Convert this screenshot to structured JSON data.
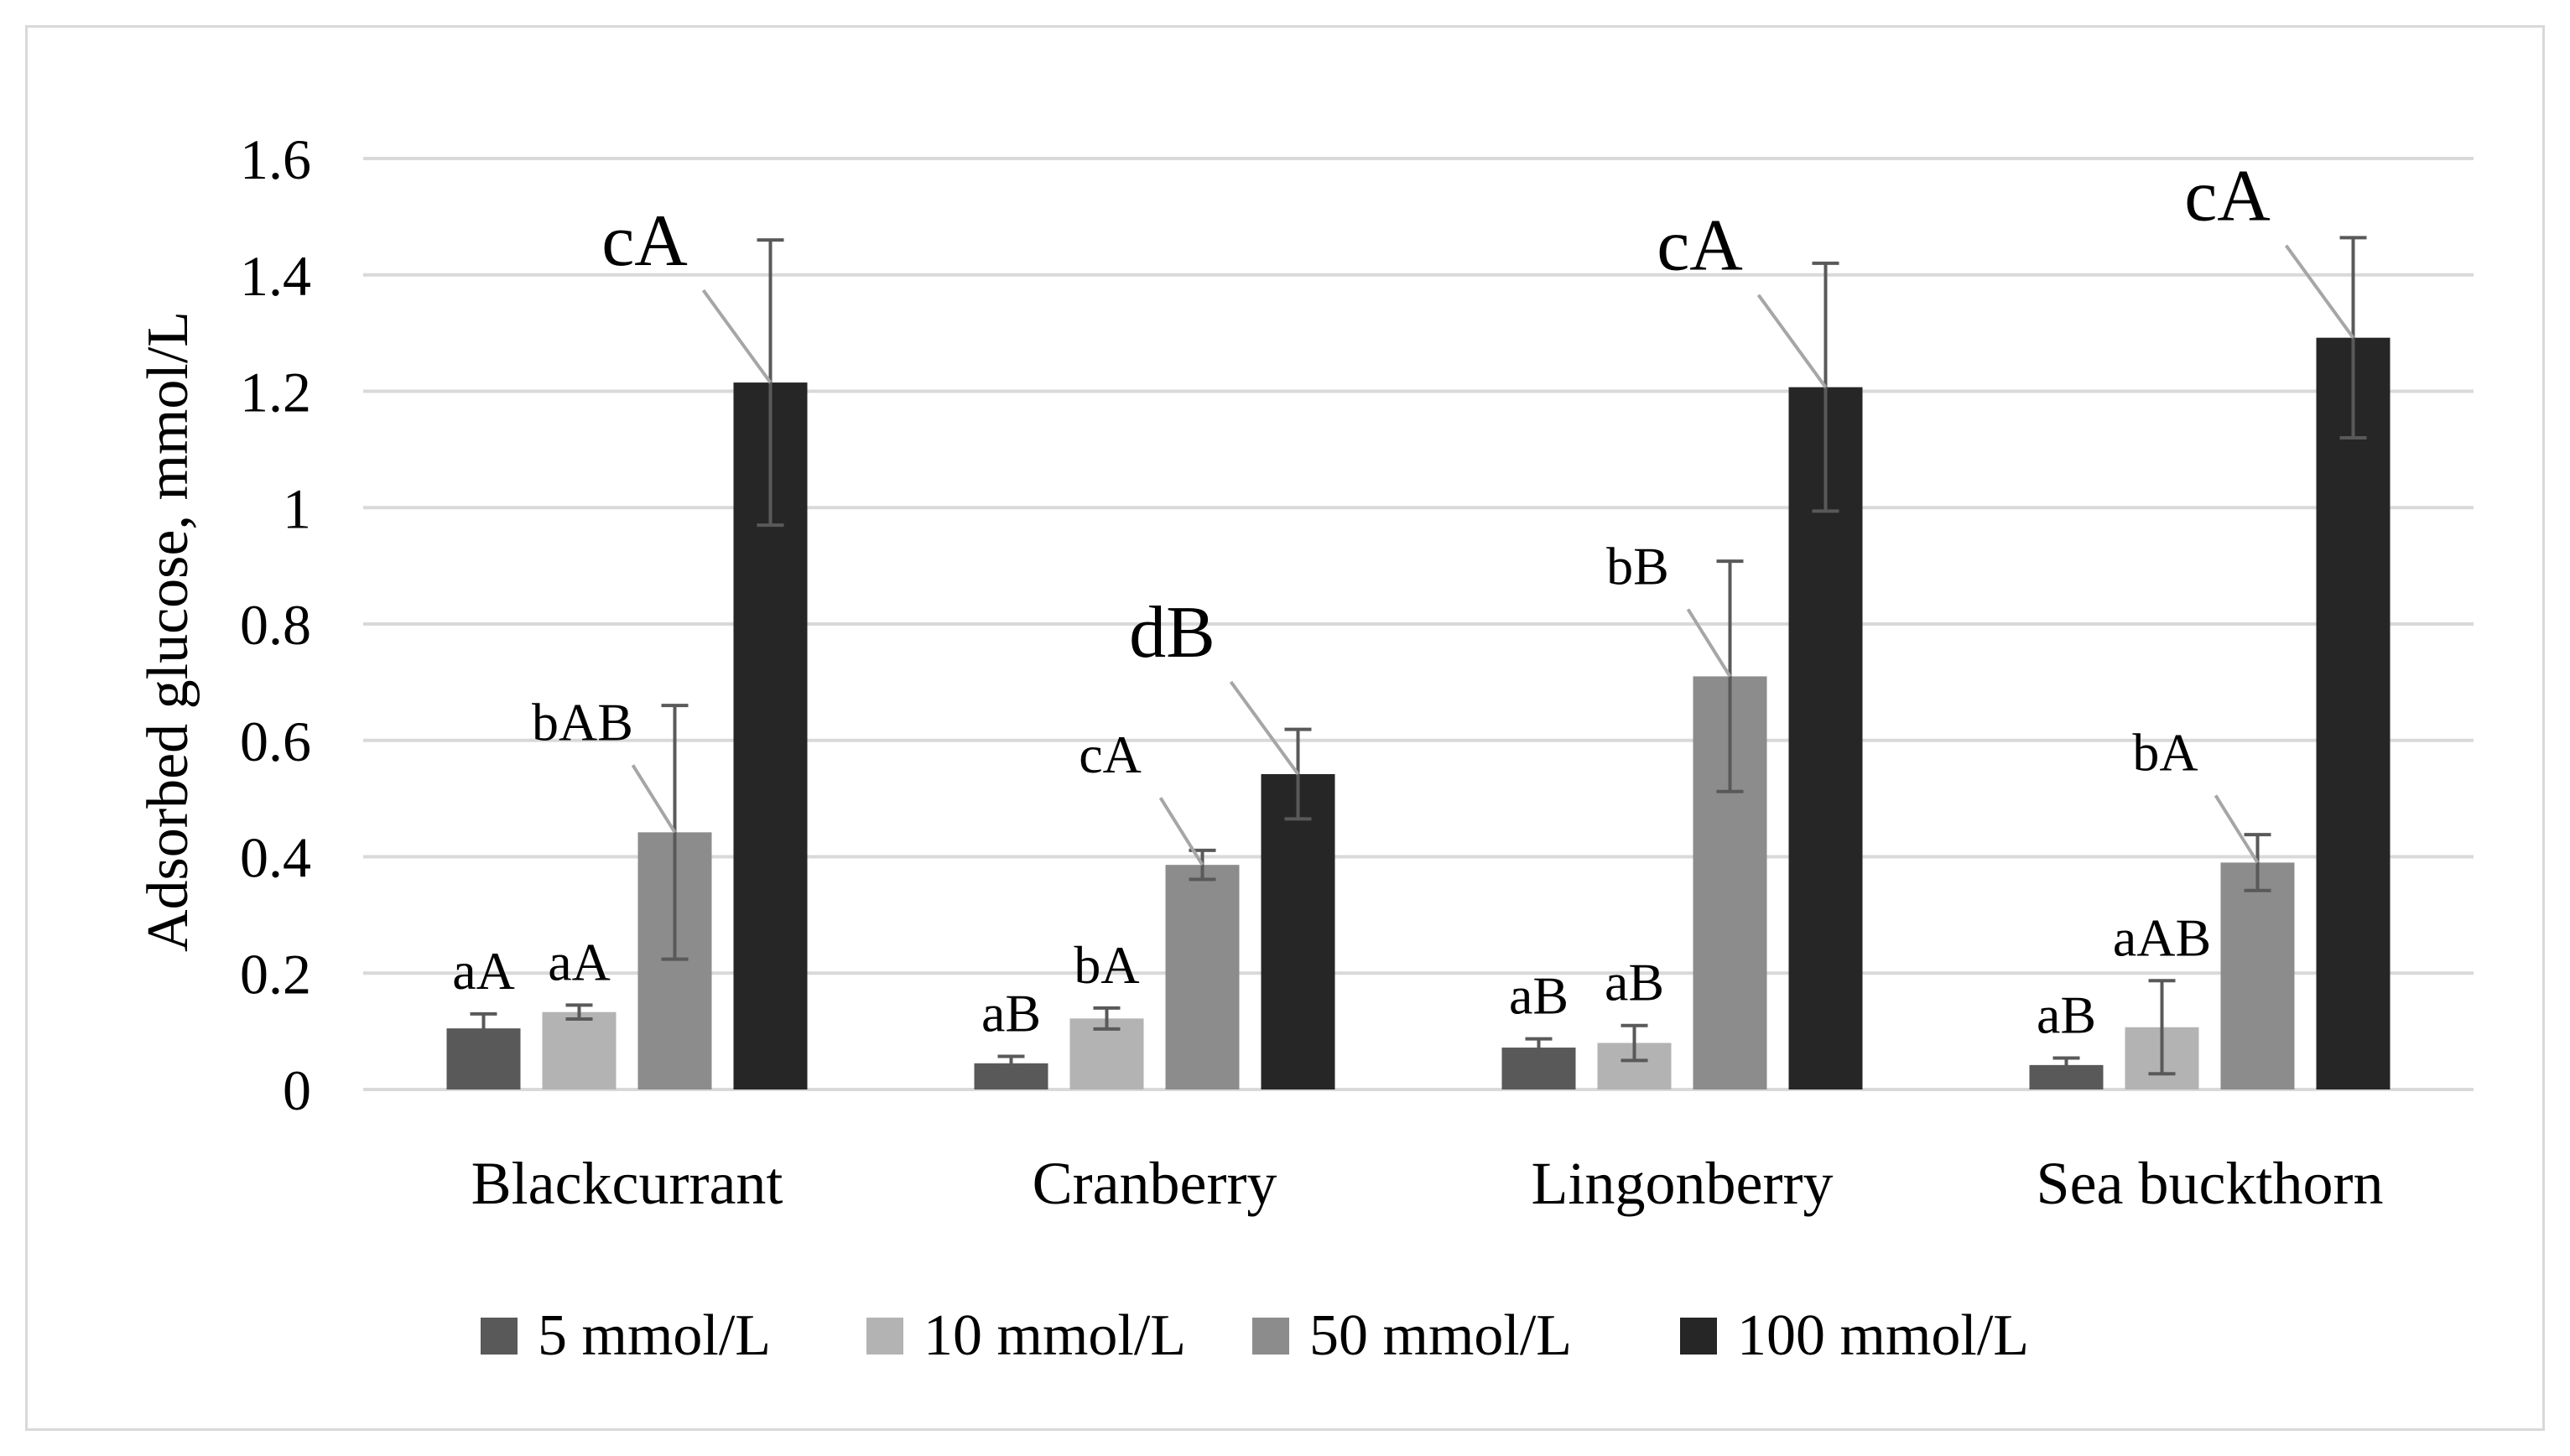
{
  "chart_data": {
    "type": "bar",
    "title": "",
    "xlabel": "",
    "ylabel": "Adsorbed glucose, mmol/L",
    "ylim": [
      0,
      1.6
    ],
    "yticks": [
      "0",
      "0.2",
      "0.4",
      "0.6",
      "0.8",
      "1",
      "1.2",
      "1.4",
      "1.6"
    ],
    "grid": true,
    "legend_position": "bottom",
    "categories": [
      "Blackcurrant",
      "Cranberry",
      "Lingonberry",
      "Sea buckthorn"
    ],
    "series": [
      {
        "name": "5 mmol/L",
        "color": "#595959",
        "values": [
          0.105,
          0.045,
          0.072,
          0.042
        ],
        "errors": [
          0.025,
          0.012,
          0.015,
          0.012
        ],
        "labels": [
          "aA",
          "aB",
          "aB",
          "aB"
        ]
      },
      {
        "name": "10 mmol/L",
        "color": "#b3b3b3",
        "values": [
          0.133,
          0.122,
          0.08,
          0.107
        ],
        "errors": [
          0.012,
          0.018,
          0.03,
          0.08
        ],
        "labels": [
          "aA",
          "bA",
          "aB",
          "aAB"
        ]
      },
      {
        "name": "50 mmol/L",
        "color": "#8c8c8c",
        "values": [
          0.442,
          0.386,
          0.71,
          0.39
        ],
        "errors": [
          0.218,
          0.025,
          0.198,
          0.048
        ],
        "labels": [
          "bAB",
          "cA",
          "bB",
          "bA"
        ]
      },
      {
        "name": "100 mmol/L",
        "color": "#262626",
        "values": [
          1.215,
          0.542,
          1.207,
          1.292
        ],
        "errors": [
          0.245,
          0.077,
          0.213,
          0.172
        ],
        "labels": [
          "cA",
          "dB",
          "cA",
          "cA"
        ]
      }
    ]
  }
}
